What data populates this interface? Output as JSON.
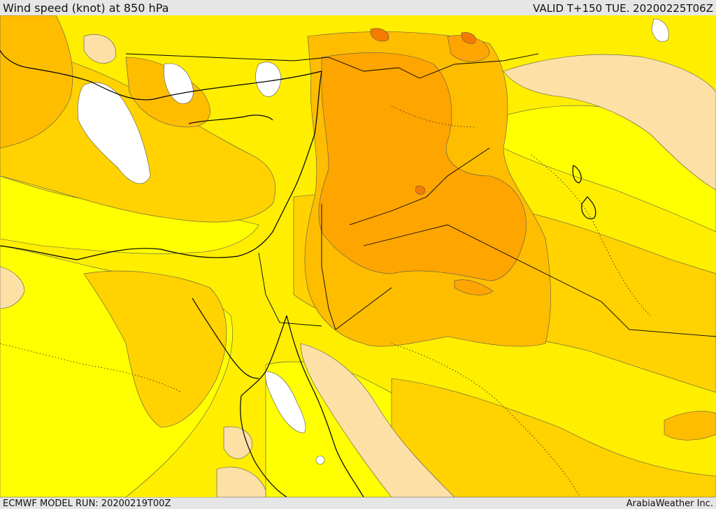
{
  "header": {
    "title": "Wind speed (knot) at 850 hPa",
    "valid_time": "VALID T+150 TUE. 20200225T06Z"
  },
  "footer": {
    "model_run": "ECMWF MODEL RUN: 20200219T00Z",
    "provider": "ArabiaWeather Inc."
  },
  "map": {
    "variable": "wind speed",
    "unit": "knot",
    "level": "850 hPa",
    "palette": {
      "calm": "#ffffff",
      "pale": "#fde0a6",
      "light_yellow": "#ffff00",
      "yellow": "#ffee00",
      "gold": "#ffd200",
      "light_orange": "#ffbd00",
      "orange": "#ffa500",
      "dark_orange": "#ff9400",
      "red_orange": "#f47a00"
    },
    "coastline_color": "#000000",
    "border_style": "solid",
    "dotted_lines": "dotted"
  }
}
